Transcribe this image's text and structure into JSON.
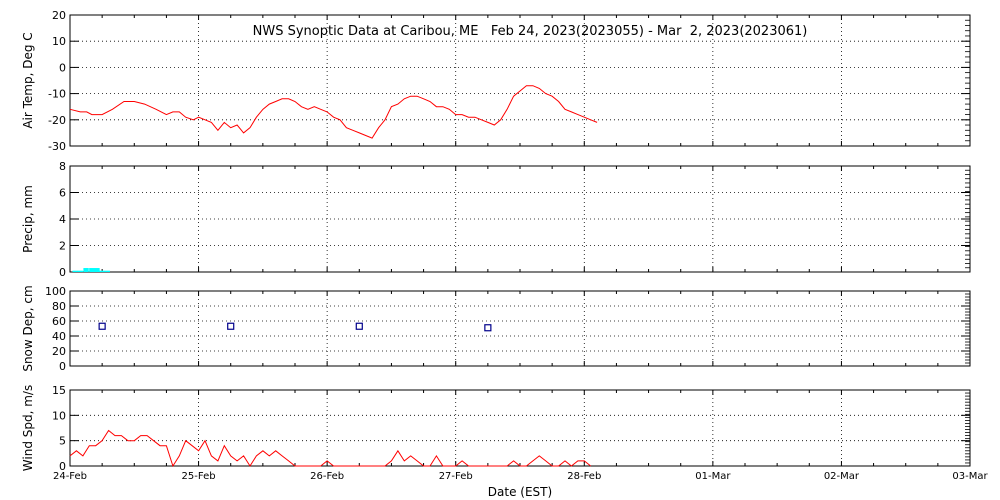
{
  "title": "NWS Synoptic Data at Caribou, ME   Feb 24, 2023(2023055) - Mar  2, 2023(2023061)",
  "x_axis": {
    "label": "Date (EST)",
    "tick_labels": [
      "24-Feb",
      "25-Feb",
      "26-Feb",
      "27-Feb",
      "28-Feb",
      "01-Mar",
      "02-Mar",
      "03-Mar"
    ],
    "range_days": [
      0,
      7
    ]
  },
  "colors": {
    "air_temp": "#ff0000",
    "precip": "#00ffff",
    "snow_depth": "#00008b",
    "wind_speed": "#ff0000"
  },
  "chart_data": [
    {
      "type": "line",
      "ylabel": "Air Temp, Deg C",
      "ylim": [
        -30,
        20
      ],
      "yticks": [
        -30,
        -20,
        -10,
        0,
        10,
        20
      ],
      "grid": true,
      "series": [
        {
          "x": [
            0,
            0.08,
            0.13,
            0.17,
            0.25,
            0.33,
            0.42,
            0.5,
            0.58,
            0.67,
            0.75,
            0.8,
            0.85,
            0.9,
            0.96,
            1.0,
            1.05,
            1.1,
            1.15,
            1.2,
            1.25,
            1.3,
            1.35,
            1.4,
            1.45,
            1.5,
            1.55,
            1.6,
            1.65,
            1.7,
            1.75,
            1.8,
            1.85,
            1.9,
            1.95,
            2.0,
            2.05,
            2.1,
            2.15,
            2.2,
            2.25,
            2.3,
            2.35,
            2.4,
            2.45,
            2.5,
            2.55,
            2.6,
            2.65,
            2.7,
            2.75,
            2.8,
            2.85,
            2.9,
            2.95,
            3.0,
            3.05,
            3.1,
            3.15,
            3.2,
            3.25,
            3.3,
            3.35,
            3.4,
            3.45,
            3.5,
            3.55,
            3.6,
            3.65,
            3.7,
            3.75,
            3.8,
            3.85,
            3.9,
            3.95,
            4.0,
            4.05,
            4.1
          ],
          "y": [
            -16,
            -17,
            -17,
            -18,
            -18,
            -16,
            -13,
            -13,
            -14,
            -16,
            -18,
            -17,
            -17,
            -19,
            -20,
            -19,
            -20,
            -21,
            -24,
            -21,
            -23,
            -22,
            -25,
            -23,
            -19,
            -16,
            -14,
            -13,
            -12,
            -12,
            -13,
            -15,
            -16,
            -15,
            -16,
            -17,
            -19,
            -20,
            -23,
            -24,
            -25,
            -26,
            -27,
            -23,
            -20,
            -15,
            -14,
            -12,
            -11,
            -11,
            -12,
            -13,
            -15,
            -15,
            -16,
            -18,
            -18,
            -19,
            -19,
            -20,
            -21,
            -22,
            -20,
            -16,
            -11,
            -9,
            -7,
            -7,
            -8,
            -10,
            -11,
            -13,
            -16,
            -17,
            -18,
            -19,
            -20,
            -21
          ]
        }
      ]
    },
    {
      "type": "bar",
      "ylabel": "Precip, mm",
      "ylim": [
        0,
        8
      ],
      "yticks": [
        0,
        2,
        4,
        6,
        8
      ],
      "grid": true,
      "series": [
        {
          "x": [
            0.04,
            0.08,
            0.125,
            0.17,
            0.21,
            0.25,
            0.29
          ],
          "y": [
            0.1,
            0.1,
            0.3,
            0.3,
            0.3,
            0.1,
            0.1
          ]
        }
      ]
    },
    {
      "type": "scatter",
      "ylabel": "Snow Dep, cm",
      "ylim": [
        0,
        100
      ],
      "yticks": [
        0,
        20,
        40,
        60,
        80,
        100
      ],
      "grid": true,
      "series": [
        {
          "x": [
            0.25,
            1.25,
            2.25,
            3.25
          ],
          "y": [
            53,
            53,
            53,
            51
          ]
        }
      ]
    },
    {
      "type": "line",
      "ylabel": "Wind Spd, m/s",
      "ylim": [
        0,
        15
      ],
      "yticks": [
        0,
        5,
        10,
        15
      ],
      "grid": true,
      "series": [
        {
          "x": [
            0,
            0.05,
            0.1,
            0.15,
            0.2,
            0.25,
            0.3,
            0.35,
            0.4,
            0.45,
            0.5,
            0.55,
            0.6,
            0.65,
            0.7,
            0.75,
            0.8,
            0.85,
            0.9,
            0.95,
            1.0,
            1.05,
            1.1,
            1.15,
            1.2,
            1.25,
            1.3,
            1.35,
            1.4,
            1.45,
            1.5,
            1.55,
            1.6,
            1.65,
            1.7,
            1.75,
            1.8,
            1.85,
            1.9,
            1.95,
            2.0,
            2.05,
            2.1,
            2.15,
            2.2,
            2.25,
            2.3,
            2.35,
            2.4,
            2.45,
            2.5,
            2.55,
            2.6,
            2.65,
            2.7,
            2.75,
            2.8,
            2.85,
            2.9,
            2.95,
            3.0,
            3.05,
            3.1,
            3.15,
            3.2,
            3.25,
            3.3,
            3.35,
            3.4,
            3.45,
            3.5,
            3.55,
            3.6,
            3.65,
            3.7,
            3.75,
            3.8,
            3.85,
            3.9,
            3.95,
            4.0,
            4.05
          ],
          "y": [
            2,
            3,
            2,
            4,
            4,
            5,
            7,
            6,
            6,
            5,
            5,
            6,
            6,
            5,
            4,
            4,
            0,
            2,
            5,
            4,
            3,
            5,
            2,
            1,
            4,
            2,
            1,
            2,
            0,
            2,
            3,
            2,
            3,
            2,
            1,
            0,
            0,
            0,
            0,
            0,
            1,
            0,
            0,
            0,
            0,
            0,
            0,
            0,
            0,
            0,
            1,
            3,
            1,
            2,
            1,
            0,
            0,
            2,
            0,
            0,
            0,
            1,
            0,
            0,
            0,
            0,
            0,
            0,
            0,
            1,
            0,
            0,
            1,
            2,
            1,
            0,
            0,
            1,
            0,
            1,
            1,
            0
          ]
        }
      ]
    }
  ]
}
